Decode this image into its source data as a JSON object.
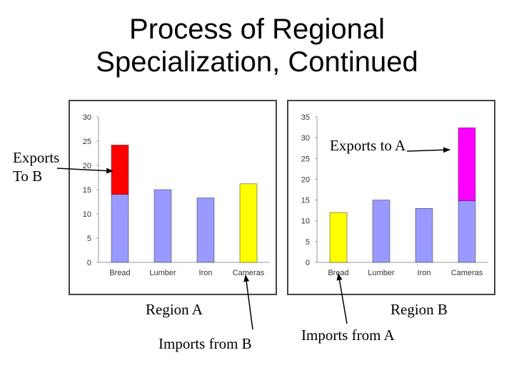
{
  "title": {
    "line1": "Process of Regional",
    "line2": "Specialization, Continued"
  },
  "annotations": {
    "exports_to_b_line1": "Exports",
    "exports_to_b_line2": "To B",
    "exports_to_a": "Exports to A",
    "region_a": "Region A",
    "region_b": "Region B",
    "imports_from_b": "Imports from B",
    "imports_from_a": "Imports from A"
  },
  "colors": {
    "base": "#9999ff",
    "export": "#ff0000",
    "import": "#ffff00",
    "export_b": "#ff00ff"
  },
  "chart_data": [
    {
      "type": "bar",
      "categories": [
        "Bread",
        "Lumber",
        "Iron",
        "Cameras"
      ],
      "series": [
        {
          "values": [
            14,
            15,
            13.3,
            16.2
          ]
        },
        {
          "values": [
            10.2,
            0,
            0,
            0
          ]
        }
      ],
      "bar_colors": [
        "#9999ff",
        "#9999ff",
        "#9999ff",
        "#ffff00"
      ],
      "stack_color": "#ff0000",
      "ylim": [
        0,
        30
      ],
      "yticks": [
        0,
        5,
        10,
        15,
        20,
        25,
        30
      ]
    },
    {
      "type": "bar",
      "categories": [
        "Bread",
        "Lumber",
        "Iron",
        "Cameras"
      ],
      "series": [
        {
          "values": [
            12,
            15,
            13,
            14.8
          ]
        },
        {
          "values": [
            0,
            0,
            0,
            17.6
          ]
        }
      ],
      "bar_colors": [
        "#ffff00",
        "#9999ff",
        "#9999ff",
        "#9999ff"
      ],
      "stack_color": "#ff00ff",
      "ylim": [
        0,
        35
      ],
      "yticks": [
        0,
        5,
        10,
        15,
        20,
        25,
        30,
        35
      ]
    }
  ]
}
